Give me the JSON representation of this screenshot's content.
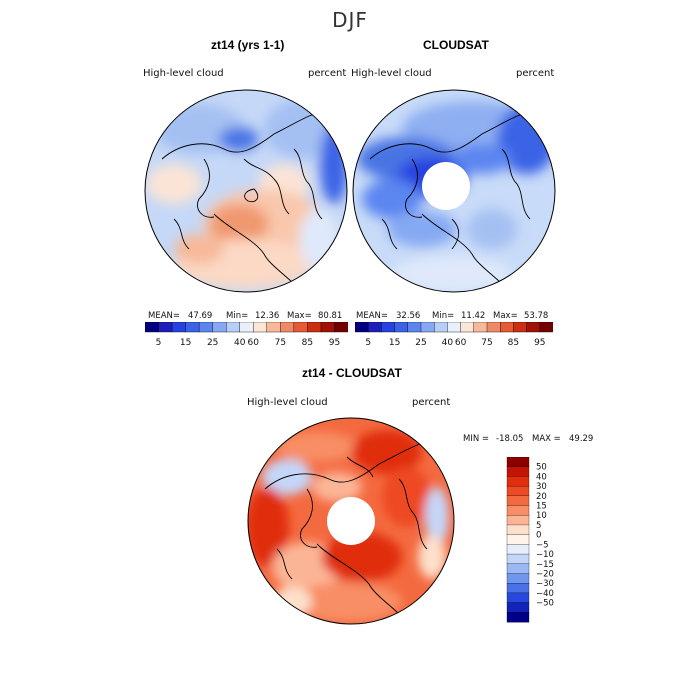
{
  "figure": {
    "season": "DJF"
  },
  "chart_data": [
    {
      "type": "heatmap",
      "title": "zt14 (yrs 1-1)",
      "variable_label": "High-level cloud",
      "units": "percent",
      "projection": "north-polar-stereographic",
      "stats": {
        "mean_label": "MEAN=",
        "mean": "47.69",
        "min_label": "Min=",
        "min": "12.36",
        "max_label": "Max=",
        "max": "80.81"
      },
      "colorbar": {
        "orientation": "horizontal",
        "colors": [
          "#00007f",
          "#1e1ebd",
          "#2742e0",
          "#3a63e6",
          "#5b86f0",
          "#86a9f3",
          "#b7cff8",
          "#e8f0fc",
          "#fde6d5",
          "#f7b99a",
          "#ef8a66",
          "#e55b35",
          "#cc2e12",
          "#a01204",
          "#740000"
        ],
        "tick_labels": [
          "5",
          "15",
          "25",
          "40",
          "60",
          "75",
          "85",
          "95"
        ]
      },
      "field_description": "mostly 35-60% with higher values over Siberia"
    },
    {
      "type": "heatmap",
      "title": "CLOUDSAT",
      "variable_label": "High-level cloud",
      "units": "percent",
      "projection": "north-polar-stereographic",
      "stats": {
        "mean_label": "MEAN=",
        "mean": "32.56",
        "min_label": "Min=",
        "min": "11.42",
        "max_label": "Max=",
        "max": "53.78"
      },
      "colorbar": {
        "orientation": "horizontal",
        "colors": [
          "#00007f",
          "#1e1ebd",
          "#2742e0",
          "#3a63e6",
          "#5b86f0",
          "#86a9f3",
          "#b7cff8",
          "#e8f0fc",
          "#fde6d5",
          "#f7b99a",
          "#ef8a66",
          "#e55b35",
          "#cc2e12",
          "#a01204",
          "#740000"
        ],
        "tick_labels": [
          "5",
          "15",
          "25",
          "40",
          "60",
          "75",
          "85",
          "95"
        ]
      },
      "field_description": "mostly 15-40% with missing data over the pole"
    },
    {
      "type": "heatmap",
      "title": "zt14 - CLOUDSAT",
      "variable_label": "High-level cloud",
      "units": "percent",
      "projection": "north-polar-stereographic",
      "stats": {
        "min_label": "MIN =",
        "min": "-18.05",
        "max_label": "MAX =",
        "max": "49.29"
      },
      "colorbar": {
        "orientation": "vertical",
        "colors": [
          "#8e0000",
          "#c21505",
          "#e02e0f",
          "#ee4a23",
          "#f46a40",
          "#f88e65",
          "#fbb596",
          "#fde0cb",
          "#fff3ea",
          "#e6eefc",
          "#c4d6f8",
          "#9ab8f3",
          "#7096ee",
          "#4a71e8",
          "#2847dd",
          "#1223b8",
          "#00008a"
        ],
        "tick_labels": [
          "50",
          "40",
          "30",
          "20",
          "15",
          "10",
          "5",
          "0",
          "−5",
          "−10",
          "−15",
          "−20",
          "−30",
          "−40",
          "−50"
        ]
      },
      "field_description": "mostly positive differences 10-30% with a missing polar region"
    }
  ]
}
